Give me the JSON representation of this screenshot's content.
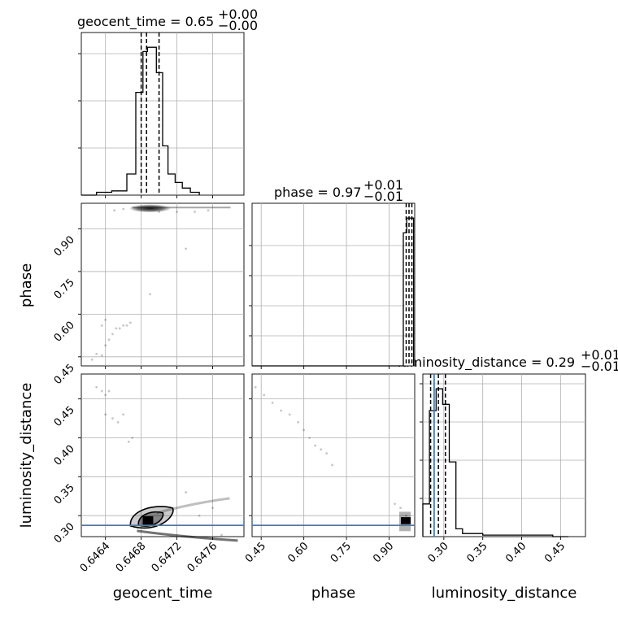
{
  "chart_data": {
    "type": "corner",
    "grid": true,
    "parameters": [
      "geocent_time",
      "phase",
      "luminosity_distance"
    ],
    "titles": [
      {
        "param": "geocent_time",
        "prefix": "geocent_time = ",
        "value": "0.65",
        "plus": "+0.00",
        "minus": "−0.00"
      },
      {
        "param": "phase",
        "prefix": "phase = ",
        "value": "0.97",
        "plus": "+0.01",
        "minus": "−0.01"
      },
      {
        "param": "luminosity_distance",
        "prefix": "luminosity_distance = ",
        "value": "0.29",
        "plus": "+0.01",
        "minus": "−0.01"
      }
    ],
    "axes": {
      "geocent_time": {
        "range": [
          0.64613,
          0.64795
        ],
        "ticks": [
          0.6464,
          0.6468,
          0.6472,
          0.6476
        ],
        "tick_labels": [
          "0.6464",
          "0.6468",
          "0.6472",
          "0.6476"
        ]
      },
      "phase": {
        "range": [
          0.418,
          0.99
        ],
        "ticks": [
          0.45,
          0.6,
          0.75,
          0.9
        ],
        "tick_labels": [
          "0.45",
          "0.60",
          "0.75",
          "0.90"
        ]
      },
      "luminosity_distance": {
        "range": [
          0.273,
          0.482
        ],
        "ticks": [
          0.3,
          0.35,
          0.4,
          0.45
        ],
        "tick_labels": [
          "0.30",
          "0.35",
          "0.40",
          "0.45"
        ]
      }
    },
    "injection": {
      "luminosity_distance": 0.2875
    },
    "injection_color": "#3b7dc4",
    "quantiles": {
      "geocent_time": [
        0.6468,
        0.64686,
        0.647
      ],
      "phase": [
        0.96,
        0.97,
        0.98
      ],
      "luminosity_distance": [
        0.283,
        0.293,
        0.302
      ]
    },
    "hist_geocent_time": {
      "edges": [
        0.6463,
        0.64647,
        0.64664,
        0.64674,
        0.64682,
        0.64687,
        0.64697,
        0.64704,
        0.6471,
        0.64718,
        0.64726,
        0.64735,
        0.64745
      ],
      "counts": [
        2,
        3,
        15,
        73,
        102,
        105,
        87,
        35,
        15,
        9,
        5,
        2
      ]
    },
    "hist_phase": {
      "edges": [
        0.95,
        0.962,
        0.974,
        0.986
      ],
      "counts": [
        90,
        100,
        100
      ]
    },
    "hist_luminosity_distance": {
      "edges": [
        0.273,
        0.2815,
        0.29,
        0.2985,
        0.307,
        0.3155,
        0.324,
        0.35,
        0.41,
        0.44,
        0.46
      ],
      "counts": [
        21,
        81,
        95,
        85,
        48,
        5,
        2,
        1,
        1,
        0
      ]
    },
    "scatter_geocent_phase": [
      {
        "x": 0.64625,
        "y": 0.44
      },
      {
        "x": 0.6463,
        "y": 0.46
      },
      {
        "x": 0.64636,
        "y": 0.455
      },
      {
        "x": 0.6464,
        "y": 0.49
      },
      {
        "x": 0.64644,
        "y": 0.51
      },
      {
        "x": 0.64648,
        "y": 0.53
      },
      {
        "x": 0.64652,
        "y": 0.55
      },
      {
        "x": 0.64656,
        "y": 0.55
      },
      {
        "x": 0.6466,
        "y": 0.56
      },
      {
        "x": 0.64664,
        "y": 0.56
      },
      {
        "x": 0.64668,
        "y": 0.57
      },
      {
        "x": 0.64636,
        "y": 0.56
      },
      {
        "x": 0.6464,
        "y": 0.58
      },
      {
        "x": 0.6469,
        "y": 0.67
      },
      {
        "x": 0.6473,
        "y": 0.83
      },
      {
        "x": 0.647,
        "y": 0.96
      },
      {
        "x": 0.6472,
        "y": 0.96
      },
      {
        "x": 0.6474,
        "y": 0.96
      },
      {
        "x": 0.64755,
        "y": 0.965
      },
      {
        "x": 0.6466,
        "y": 0.97
      },
      {
        "x": 0.6465,
        "y": 0.965
      }
    ],
    "scatter_phase_dist": [
      {
        "x": 0.43,
        "y": 0.465
      },
      {
        "x": 0.46,
        "y": 0.455
      },
      {
        "x": 0.49,
        "y": 0.445
      },
      {
        "x": 0.52,
        "y": 0.435
      },
      {
        "x": 0.55,
        "y": 0.43
      },
      {
        "x": 0.58,
        "y": 0.42
      },
      {
        "x": 0.6,
        "y": 0.41
      },
      {
        "x": 0.62,
        "y": 0.4
      },
      {
        "x": 0.64,
        "y": 0.39
      },
      {
        "x": 0.66,
        "y": 0.385
      },
      {
        "x": 0.68,
        "y": 0.38
      },
      {
        "x": 0.7,
        "y": 0.365
      },
      {
        "x": 0.92,
        "y": 0.315
      },
      {
        "x": 0.94,
        "y": 0.31
      },
      {
        "x": 0.96,
        "y": 0.3
      }
    ],
    "scatter_geocent_dist": [
      {
        "x": 0.6463,
        "y": 0.465
      },
      {
        "x": 0.64636,
        "y": 0.46
      },
      {
        "x": 0.6464,
        "y": 0.455
      },
      {
        "x": 0.64644,
        "y": 0.46
      },
      {
        "x": 0.6464,
        "y": 0.43
      },
      {
        "x": 0.64648,
        "y": 0.425
      },
      {
        "x": 0.64654,
        "y": 0.42
      },
      {
        "x": 0.6466,
        "y": 0.43
      },
      {
        "x": 0.64666,
        "y": 0.395
      },
      {
        "x": 0.6467,
        "y": 0.4
      },
      {
        "x": 0.6473,
        "y": 0.33
      },
      {
        "x": 0.64745,
        "y": 0.3
      },
      {
        "x": 0.6476,
        "y": 0.31
      },
      {
        "x": 0.6477,
        "y": 0.275
      }
    ]
  }
}
